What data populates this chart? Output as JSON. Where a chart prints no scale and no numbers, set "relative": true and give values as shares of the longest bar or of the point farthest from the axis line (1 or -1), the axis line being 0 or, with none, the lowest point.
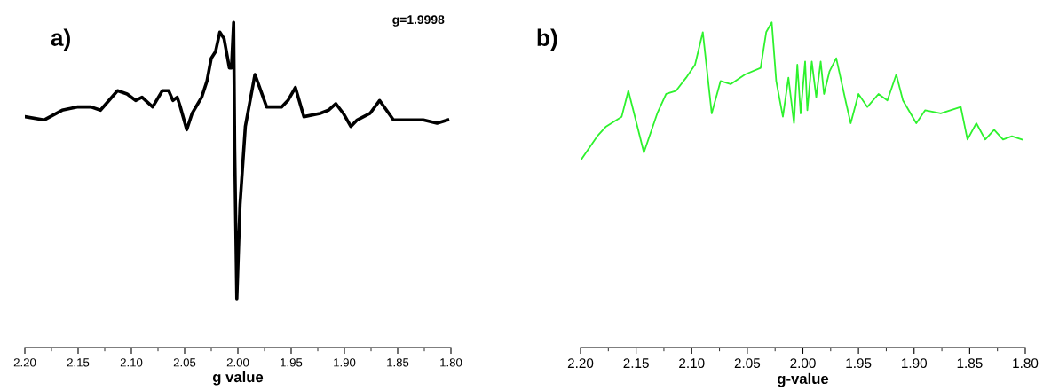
{
  "chart_data": [
    {
      "type": "line",
      "title": "a)",
      "xlabel": "g value",
      "relative": true,
      "xlim": [
        2.2,
        1.8
      ],
      "xticks": [
        {
          "value": 2.2,
          "label": "2.20"
        },
        2.15,
        {
          "value": 2.1,
          "label": "2.10"
        },
        2.05,
        {
          "value": 2.0,
          "label": "2.00"
        },
        1.95,
        {
          "value": 1.9,
          "label": "1.90"
        },
        1.85,
        {
          "value": 1.8,
          "label": "1.80"
        }
      ],
      "annotations": [
        "g=1.9998"
      ],
      "grid": false,
      "legend": false,
      "series": [
        {
          "color": "#000000",
          "x": [
            2.2,
            2.182,
            2.165,
            2.151,
            2.138,
            2.129,
            2.121,
            2.113,
            2.104,
            2.096,
            2.09,
            2.08,
            2.071,
            2.065,
            2.061,
            2.057,
            2.054,
            2.048,
            2.043,
            2.034,
            2.029,
            2.025,
            2.021,
            2.017,
            2.013,
            2.008,
            2.006,
            2.004,
            2.003,
            2.001,
            1.998,
            1.993,
            1.984,
            1.973,
            1.959,
            1.953,
            1.946,
            1.938,
            1.923,
            1.915,
            1.908,
            1.901,
            1.894,
            1.888,
            1.876,
            1.867,
            1.854,
            1.84,
            1.826,
            1.813,
            1.803
          ],
          "values": [
            0.71,
            0.7,
            0.73,
            0.74,
            0.74,
            0.73,
            0.76,
            0.79,
            0.78,
            0.76,
            0.77,
            0.74,
            0.79,
            0.79,
            0.76,
            0.77,
            0.74,
            0.67,
            0.72,
            0.77,
            0.82,
            0.89,
            0.91,
            0.97,
            0.95,
            0.86,
            0.86,
            1.0,
            0.61,
            0.15,
            0.44,
            0.68,
            0.84,
            0.74,
            0.74,
            0.76,
            0.8,
            0.71,
            0.72,
            0.73,
            0.75,
            0.72,
            0.68,
            0.7,
            0.72,
            0.76,
            0.7,
            0.7,
            0.7,
            0.69,
            0.7
          ]
        }
      ]
    },
    {
      "type": "line",
      "title": "b)",
      "xlabel": "g-value",
      "relative": true,
      "xlim": [
        2.2,
        1.8
      ],
      "xticks": [
        {
          "value": 2.2,
          "label": "2.20"
        },
        2.15,
        {
          "value": 2.1,
          "label": "2.10"
        },
        2.05,
        {
          "value": 2.0,
          "label": "2.00"
        },
        1.95,
        {
          "value": 1.9,
          "label": "1.90"
        },
        1.85,
        {
          "value": 1.8,
          "label": "1.80"
        }
      ],
      "grid": false,
      "legend": false,
      "series": [
        {
          "color": "#2ef22e",
          "x": [
            2.199,
            2.185,
            2.177,
            2.163,
            2.157,
            2.143,
            2.131,
            2.123,
            2.114,
            2.105,
            2.097,
            2.09,
            2.082,
            2.074,
            2.065,
            2.052,
            2.038,
            2.033,
            2.028,
            2.024,
            2.018,
            2.013,
            2.008,
            2.005,
            2.002,
            1.998,
            1.996,
            1.992,
            1.988,
            1.984,
            1.981,
            1.976,
            1.97,
            1.961,
            1.957,
            1.95,
            1.942,
            1.932,
            1.924,
            1.916,
            1.91,
            1.898,
            1.89,
            1.876,
            1.858,
            1.852,
            1.844,
            1.836,
            1.828,
            1.82,
            1.812,
            1.803
          ],
          "values": [
            0.58,
            0.65,
            0.68,
            0.71,
            0.79,
            0.6,
            0.72,
            0.78,
            0.79,
            0.83,
            0.87,
            0.97,
            0.72,
            0.82,
            0.81,
            0.84,
            0.86,
            0.97,
            1.0,
            0.82,
            0.71,
            0.83,
            0.69,
            0.87,
            0.72,
            0.88,
            0.73,
            0.88,
            0.77,
            0.88,
            0.78,
            0.85,
            0.89,
            0.75,
            0.69,
            0.78,
            0.74,
            0.78,
            0.76,
            0.84,
            0.76,
            0.69,
            0.73,
            0.72,
            0.74,
            0.64,
            0.69,
            0.64,
            0.67,
            0.64,
            0.65,
            0.64
          ]
        }
      ]
    }
  ]
}
